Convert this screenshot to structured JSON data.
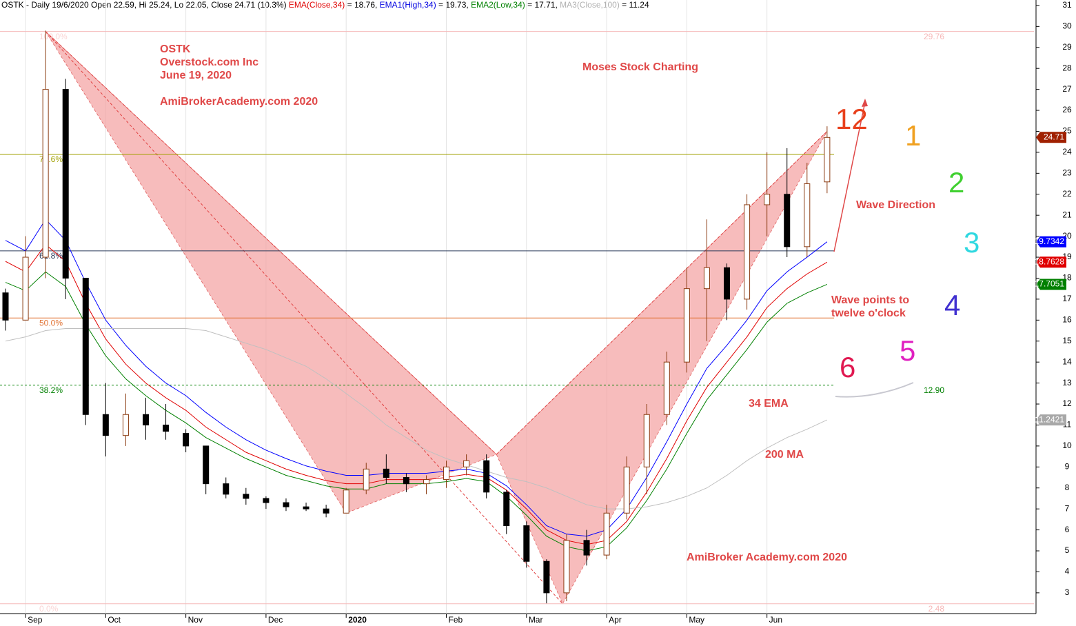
{
  "chart_data": {
    "type": "candlestick",
    "header": [
      {
        "text": "OSTK - Daily 19/6/2020 Open 22.59, Hi 25.24, Lo 22.05, Close 24.71 (10.3%) ",
        "color": "#000000"
      },
      {
        "text": "EMA(Close,34)",
        "color": "#e00000"
      },
      {
        "text": " = 18.76, ",
        "color": "#000000"
      },
      {
        "text": "EMA1(High,34)",
        "color": "#0000e0"
      },
      {
        "text": " = 19.73, ",
        "color": "#000000"
      },
      {
        "text": "EMA2(Low,34)",
        "color": "#008000"
      },
      {
        "text": " = 17.71, ",
        "color": "#000000"
      },
      {
        "text": "MA3(Close,100)",
        "color": "#b0b0b0"
      },
      {
        "text": " = 11.24",
        "color": "#000000"
      }
    ],
    "categories": [
      null,
      "Sep",
      null,
      null,
      null,
      "Oct",
      null,
      null,
      null,
      "Nov",
      null,
      null,
      null,
      "Dec",
      null,
      null,
      null,
      "2020",
      null,
      null,
      null,
      null,
      "Feb",
      null,
      null,
      null,
      "Mar",
      null,
      null,
      null,
      "Apr",
      null,
      null,
      null,
      "May",
      null,
      null,
      null,
      "Jun",
      null,
      null,
      null
    ],
    "open": [
      17.3,
      16,
      19,
      27,
      18,
      11.5,
      10.5,
      11.5,
      11,
      10.6,
      10,
      8.2,
      7.7,
      7.5,
      7.3,
      7.1,
      7,
      6.8,
      7.9,
      8.9,
      8.5,
      8.2,
      8.4,
      9,
      9.3,
      7.8,
      6.2,
      4.5,
      3,
      5.5,
      4.8,
      6.8,
      9,
      11.5,
      14,
      17.5,
      18.5,
      17,
      21.5,
      22,
      19.5,
      22.59
    ],
    "high": [
      17.5,
      20,
      29.8,
      27.5,
      18,
      13,
      12.5,
      12.3,
      12,
      10.8,
      10,
      8.5,
      8,
      7.6,
      7.5,
      7.3,
      7.2,
      8,
      9.2,
      9.6,
      8.7,
      8.6,
      9.3,
      9.6,
      9.6,
      7.9,
      6.4,
      4.6,
      5.8,
      6,
      7.2,
      9.5,
      12,
      14.5,
      18.5,
      20.8,
      18.7,
      22,
      24,
      24.2,
      23.5,
      25.24
    ],
    "low": [
      15.5,
      16,
      18,
      17,
      11,
      9.5,
      10,
      10.3,
      10.3,
      9.7,
      7.7,
      7.5,
      7.2,
      7,
      6.9,
      6.9,
      6.6,
      6.8,
      7.7,
      8.2,
      7.8,
      7.7,
      8,
      8.6,
      7.5,
      5.8,
      4.2,
      2.5,
      2.6,
      4.3,
      4.6,
      6.5,
      7.7,
      11,
      13.5,
      15,
      16,
      16.5,
      20,
      19,
      19,
      22.05
    ],
    "close": [
      16,
      19,
      27,
      18,
      11.5,
      10.5,
      11.5,
      11,
      10.7,
      10,
      8.2,
      7.7,
      7.5,
      7.3,
      7.1,
      7,
      6.8,
      7.9,
      8.9,
      8.5,
      8.2,
      8.4,
      9,
      9.3,
      7.8,
      6.2,
      4.5,
      3,
      5.5,
      4.8,
      6.8,
      9,
      11.5,
      14,
      17.5,
      18.5,
      17,
      21.5,
      22,
      19.5,
      22.5,
      24.71
    ],
    "series": [
      {
        "name": "EMA1(High,34)",
        "color": "#0000ff",
        "values": [
          19.8,
          19.3,
          20.8,
          19.8,
          17.8,
          16,
          14.8,
          13.8,
          13,
          12.4,
          11.6,
          10.9,
          10.3,
          9.8,
          9.4,
          9.05,
          8.8,
          8.6,
          8.6,
          8.7,
          8.7,
          8.7,
          8.8,
          8.9,
          8.7,
          8.1,
          7.2,
          6.2,
          5.8,
          5.7,
          6,
          7,
          8.5,
          10.2,
          12,
          13.7,
          14.8,
          16,
          17.4,
          18.3,
          19,
          19.7342
        ]
      },
      {
        "name": "EMA(Close,34)",
        "color": "#e00000",
        "values": [
          18.8,
          18.3,
          19.6,
          18.8,
          16.8,
          15.1,
          13.9,
          13,
          12.3,
          11.7,
          10.9,
          10.3,
          9.7,
          9.3,
          8.9,
          8.6,
          8.35,
          8.2,
          8.2,
          8.4,
          8.4,
          8.4,
          8.5,
          8.65,
          8.5,
          7.9,
          7,
          6,
          5.5,
          5.3,
          5.5,
          6.4,
          7.8,
          9.4,
          11.2,
          12.8,
          14,
          15.2,
          16.6,
          17.5,
          18.2,
          18.7628
        ]
      },
      {
        "name": "EMA2(Low,34)",
        "color": "#008000",
        "values": [
          17.8,
          17.4,
          18.3,
          17.6,
          15.8,
          14.3,
          13.2,
          12.4,
          11.7,
          11.1,
          10.4,
          9.9,
          9.4,
          9,
          8.6,
          8.35,
          8.1,
          7.95,
          7.95,
          8.2,
          8.2,
          8.2,
          8.3,
          8.45,
          8.3,
          7.6,
          6.7,
          5.7,
          5.2,
          5,
          5.2,
          6.1,
          7.4,
          8.9,
          10.6,
          12.2,
          13.4,
          14.6,
          15.9,
          16.8,
          17.3,
          17.7051
        ]
      },
      {
        "name": "MA3(Close,100)",
        "color": "#c0c0c0",
        "values": [
          15,
          15.2,
          15.5,
          15.6,
          15.6,
          15.6,
          15.6,
          15.6,
          15.6,
          15.6,
          15.5,
          15.2,
          14.9,
          14.6,
          14.2,
          13.8,
          13.2,
          12.5,
          11.8,
          11,
          10.4,
          9.8,
          9.4,
          9.1,
          8.8,
          8.5,
          8.3,
          8,
          7.6,
          7.2,
          7,
          7,
          7.1,
          7.3,
          7.6,
          8,
          8.6,
          9.3,
          9.9,
          10.4,
          10.8,
          11.2421
        ]
      }
    ],
    "last_price_color": "#a02000",
    "fib_levels": [
      {
        "level": "100.0%",
        "price": 29.76,
        "price_label": "29.76",
        "color": "#f6b8b8"
      },
      {
        "level": "78.6%",
        "price": 23.9,
        "color": "#a0a000"
      },
      {
        "level": "61.8%",
        "price": 19.3,
        "color": "#2a3a5a"
      },
      {
        "level": "50.0%",
        "price": 16.1,
        "color": "#e07030"
      },
      {
        "level": "38.2%",
        "price": 12.9,
        "price_label": "12.90",
        "color": "#008000"
      },
      {
        "level": "0.0%",
        "price": 2.48,
        "price_label": "2.48",
        "color": "#f6b8b8"
      }
    ],
    "pattern_points": [
      {
        "index": 2,
        "price": 29.76
      },
      {
        "index": 17,
        "price": 6.8
      },
      {
        "index": 24.5,
        "price": 9.6
      },
      {
        "index": 27.8,
        "price": 2.48
      },
      {
        "index": 41,
        "price": 25.0
      }
    ],
    "pattern_color": "#f4a0a0",
    "ylim": [
      2.01,
      31.26
    ],
    "yticks": [
      3,
      4,
      5,
      6,
      7,
      8,
      9,
      10,
      11,
      12,
      13,
      14,
      15,
      16,
      17,
      18,
      19,
      20,
      21,
      22,
      23,
      24,
      25,
      26,
      27,
      28,
      29,
      30,
      31
    ],
    "annotations": {
      "symbol": "OSTK",
      "company": "Overstock.com Inc",
      "date": "June 19, 2020",
      "site": "AmiBrokerAcademy.com  2020",
      "brand": "Moses Stock Charting",
      "wave_direction": "Wave Direction",
      "wave_points_1": "Wave points to",
      "wave_points_2": "twelve o'clock",
      "ema_label": "34 EMA",
      "ma_label": "200 MA",
      "site_bottom": "AmiBroker Academy.com  2020"
    },
    "clock": [
      {
        "text": "12",
        "color": "#e8401c"
      },
      {
        "text": "1",
        "color": "#f0a020"
      },
      {
        "text": "2",
        "color": "#40d030"
      },
      {
        "text": "3",
        "color": "#30d8e0"
      },
      {
        "text": "4",
        "color": "#4030d0"
      },
      {
        "text": "5",
        "color": "#e020c0"
      },
      {
        "text": "6",
        "color": "#e01850"
      }
    ]
  }
}
